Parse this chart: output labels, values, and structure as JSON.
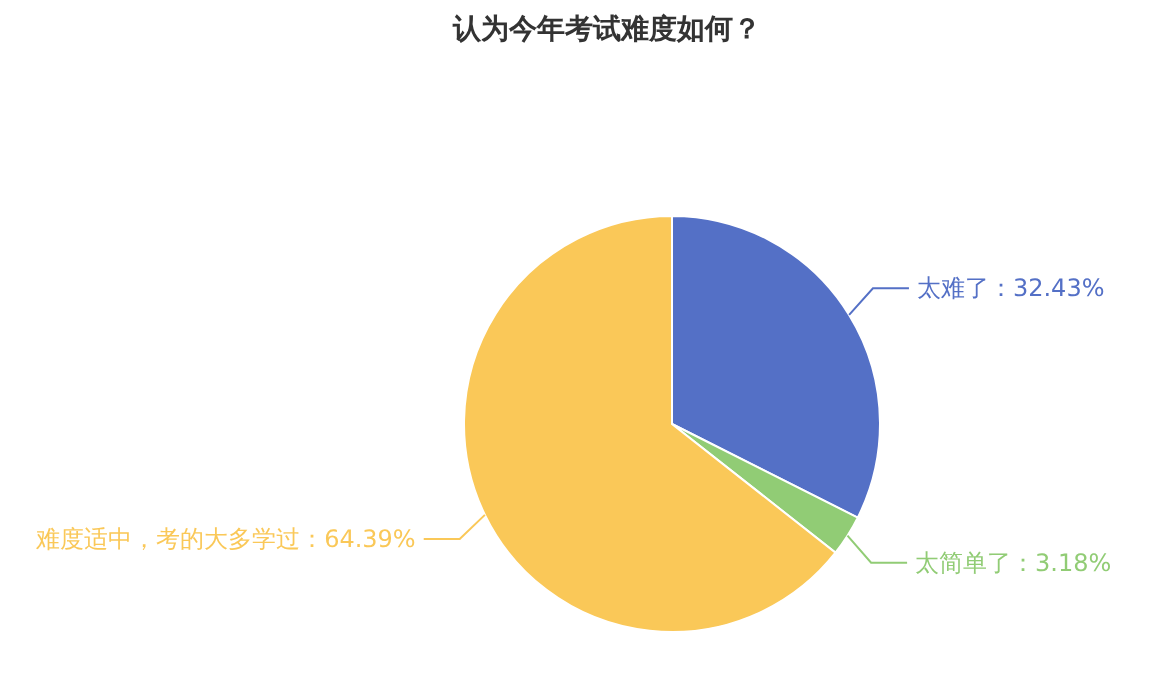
{
  "chart_data": {
    "type": "pie",
    "title": "认为今年考试难度如何？",
    "categories": [
      "太难了",
      "太简单了",
      "难度适中，考的大多学过"
    ],
    "values": [
      32.43,
      3.18,
      64.39
    ],
    "colors": [
      "#5470c6",
      "#91cc75",
      "#fac858"
    ],
    "value_labels": [
      "32.43%",
      "3.18%",
      "64.39%"
    ]
  }
}
